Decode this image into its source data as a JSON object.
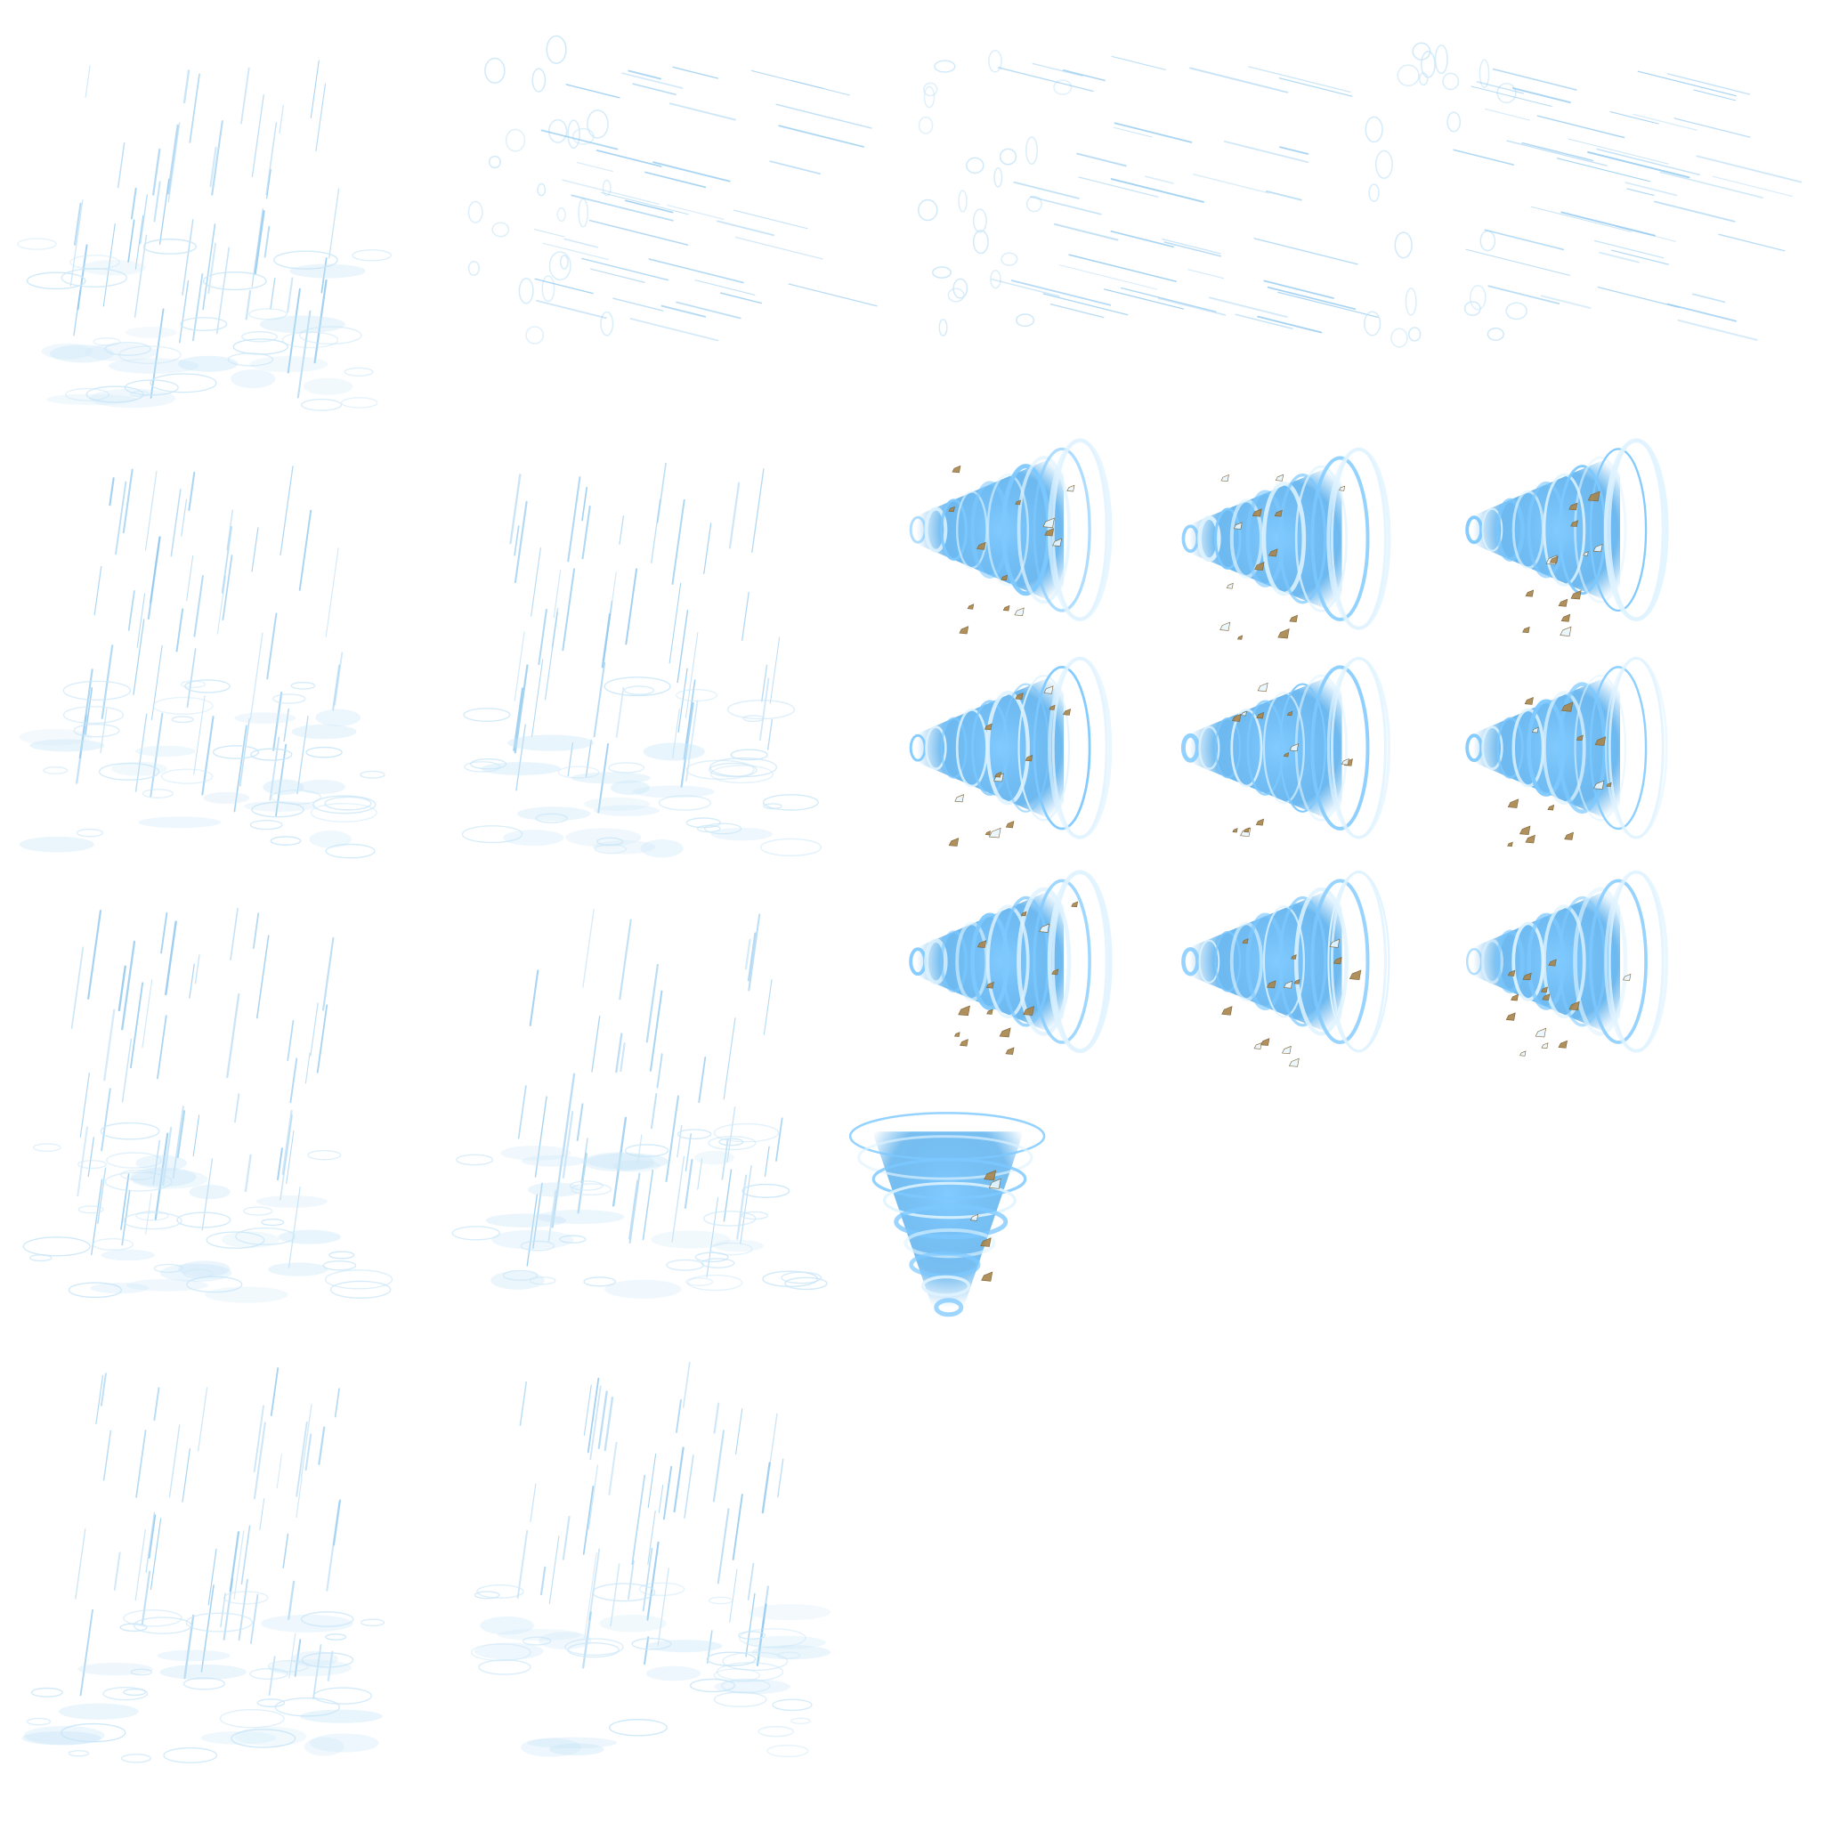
{
  "sheet": {
    "background": "#ffffff",
    "rain_color": "#8cc6ee",
    "splash_color": "#c9e6f8",
    "tornado_core": "#2f9be8",
    "tornado_glow": "#7cc8ff",
    "tornado_rim": "#dff3ff",
    "debris_color": "#a7844a",
    "ice_color": "#e8f6ff"
  },
  "groups": [
    {
      "name": "rain-falling",
      "icon": "rain-icon",
      "frames": [
        {
          "variant": "rain-puddle"
        },
        {
          "variant": "rain-puddle"
        },
        {
          "variant": "rain-puddle"
        },
        {
          "variant": "rain-puddle"
        },
        {
          "variant": "rain-puddle"
        },
        {
          "variant": "rain-puddle"
        },
        {
          "variant": "rain-puddle"
        }
      ]
    },
    {
      "name": "rain-slanted",
      "icon": "rain-splash-icon",
      "frames": [
        {
          "variant": "rain-slant"
        },
        {
          "variant": "rain-slant"
        },
        {
          "variant": "rain-slant"
        }
      ]
    },
    {
      "name": "tornado-horizontal",
      "icon": "tornado-icon",
      "frames": [
        {
          "variant": "tornado-side"
        },
        {
          "variant": "tornado-side"
        },
        {
          "variant": "tornado-side"
        },
        {
          "variant": "tornado-side"
        },
        {
          "variant": "tornado-side"
        },
        {
          "variant": "tornado-side"
        },
        {
          "variant": "tornado-side"
        },
        {
          "variant": "tornado-side"
        },
        {
          "variant": "tornado-side"
        }
      ]
    },
    {
      "name": "tornado-vertical",
      "icon": "tornado-icon",
      "frames": [
        {
          "variant": "tornado-up"
        }
      ]
    }
  ]
}
